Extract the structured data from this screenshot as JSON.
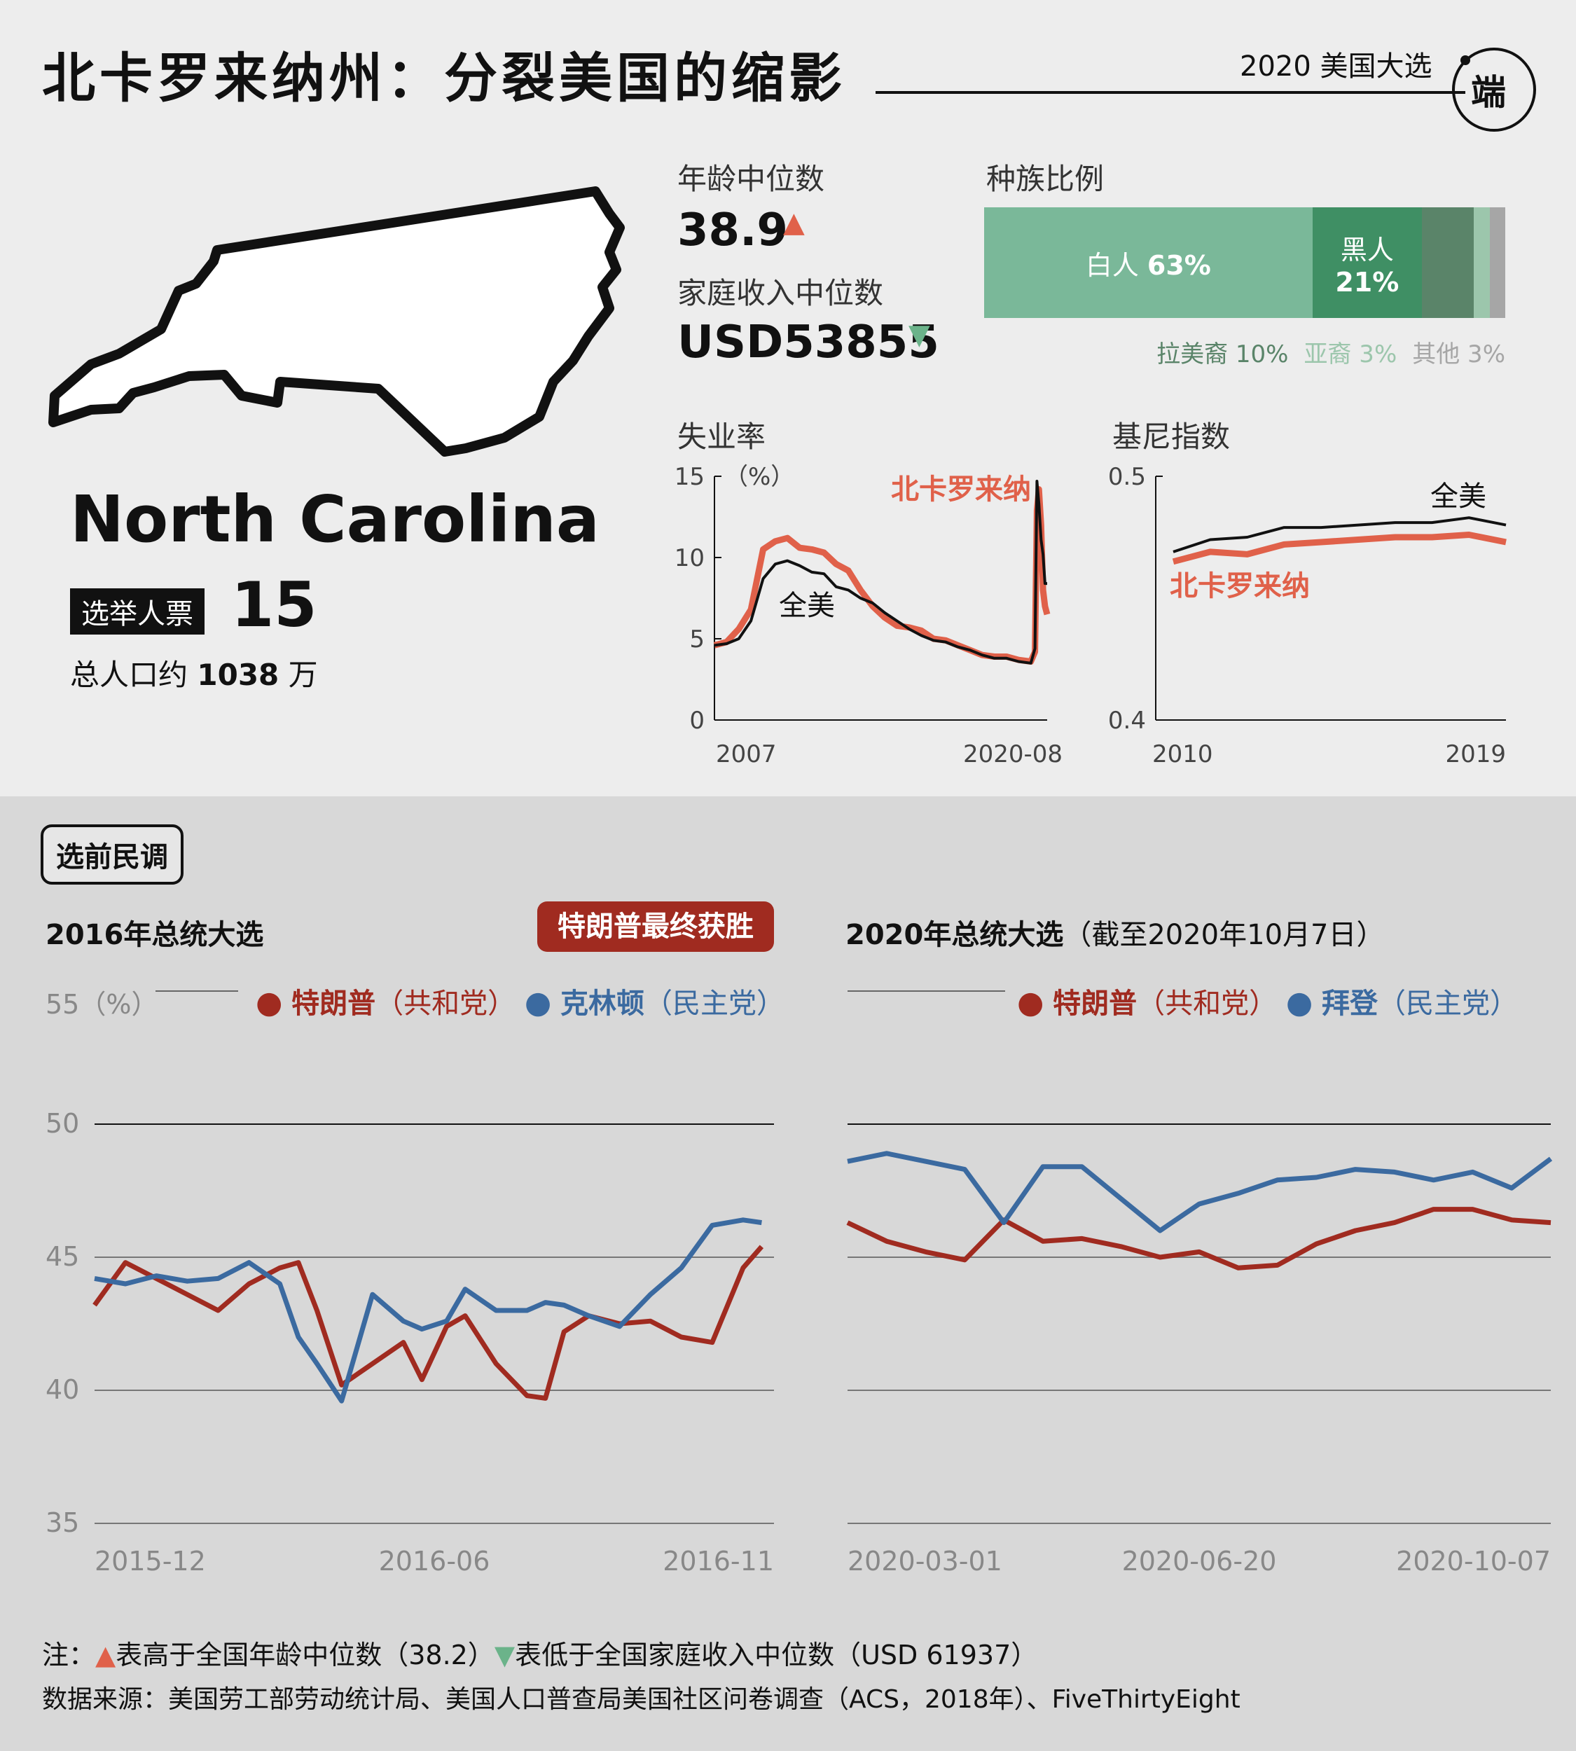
{
  "header": {
    "title": "北卡罗来纳州：分裂美国的缩影",
    "series": "2020 美国大选",
    "logo_text": "端"
  },
  "state": {
    "name": "North Carolina",
    "electoral_label": "选举人票",
    "electoral_votes": "15",
    "population_prefix": "总人口约",
    "population_value": "1038",
    "population_unit": "万"
  },
  "stats": {
    "median_age_label": "年龄中位数",
    "median_age_value": "38.9",
    "median_age_arrow": "▲",
    "median_income_label": "家庭收入中位数",
    "median_income_value": "USD53855",
    "median_income_arrow": "▼",
    "race_label": "种族比例"
  },
  "race": {
    "segments": [
      {
        "name": "白人",
        "value": 63,
        "value_label": "63%",
        "color": "#7ab899"
      },
      {
        "name": "黑人",
        "value": 21,
        "value_label": "21%",
        "color": "#3f8f64"
      },
      {
        "name": "拉美裔",
        "value": 10,
        "value_label": "10%",
        "color": "#5a8469"
      },
      {
        "name": "亚裔",
        "value": 3,
        "value_label": "3%",
        "color": "#9cc6ac"
      },
      {
        "name": "其他",
        "value": 3,
        "value_label": "3%",
        "color": "#a6a6a6"
      }
    ]
  },
  "polls_section": {
    "label": "选前民调"
  },
  "poll2016": {
    "title": "2016年总统大选",
    "winner_note": "特朗普最终获胜",
    "unit": "（%）",
    "legend": [
      {
        "name": "特朗普",
        "party": "（共和党）"
      },
      {
        "name": "克林顿",
        "party": "（民主党）"
      }
    ]
  },
  "poll2020": {
    "title": "2020年总统大选",
    "subtitle": "（截至2020年10月7日）",
    "legend": [
      {
        "name": "特朗普",
        "party": "（共和党）"
      },
      {
        "name": "拜登",
        "party": "（民主党）"
      }
    ]
  },
  "footer": {
    "note_prefix": "注：",
    "note_up_arrow": "▲",
    "note_up": "表高于全国年龄中位数（38.2）",
    "note_down_arrow": "▼",
    "note_down": "表低于全国家庭收入中位数（USD 61937）",
    "source": "数据来源：美国劳工部劳动统计局、美国人口普查局美国社区问卷调查（ACS，2018年）、FiveThirtyEight"
  },
  "colors": {
    "nc": "#e0614a",
    "us": "#111111",
    "trump": "#a02b20",
    "dem": "#3b6aa0",
    "up_arrow": "#e0614a",
    "down_arrow": "#6bb38a"
  },
  "chart_data": [
    {
      "id": "unemployment",
      "type": "line",
      "title": "失业率",
      "unit": "（%）",
      "ylim": [
        0,
        15
      ],
      "yticks": [
        0,
        5,
        10,
        15
      ],
      "xlim": [
        2007,
        2020.67
      ],
      "xtick_labels": [
        "2007",
        "2020-08"
      ],
      "series": [
        {
          "name": "北卡罗来纳",
          "x": [
            2007,
            2007.5,
            2008,
            2008.5,
            2009,
            2009.5,
            2010,
            2010.5,
            2011,
            2011.5,
            2012,
            2012.5,
            2013,
            2013.5,
            2014,
            2014.5,
            2015,
            2015.5,
            2016,
            2016.5,
            2017,
            2017.5,
            2018,
            2018.5,
            2019,
            2019.5,
            2020,
            2020.17,
            2020.25,
            2020.33,
            2020.42,
            2020.5,
            2020.58,
            2020.67
          ],
          "y": [
            4.6,
            4.8,
            5.6,
            6.8,
            10.5,
            11.0,
            11.2,
            10.6,
            10.5,
            10.3,
            9.6,
            9.2,
            8.0,
            7.0,
            6.3,
            5.8,
            5.7,
            5.5,
            5.0,
            4.9,
            4.6,
            4.3,
            4.0,
            3.9,
            3.9,
            3.7,
            3.6,
            4.2,
            12.9,
            14.2,
            12.0,
            8.0,
            7.0,
            6.5
          ]
        },
        {
          "name": "全美",
          "x": [
            2007,
            2007.5,
            2008,
            2008.5,
            2009,
            2009.5,
            2010,
            2010.5,
            2011,
            2011.5,
            2012,
            2012.5,
            2013,
            2013.5,
            2014,
            2014.5,
            2015,
            2015.5,
            2016,
            2016.5,
            2017,
            2017.5,
            2018,
            2018.5,
            2019,
            2019.5,
            2020,
            2020.17,
            2020.25,
            2020.33,
            2020.42,
            2020.5,
            2020.58,
            2020.67
          ],
          "y": [
            4.6,
            4.7,
            5.0,
            6.1,
            8.7,
            9.6,
            9.8,
            9.5,
            9.1,
            9.0,
            8.2,
            8.0,
            7.5,
            7.2,
            6.6,
            6.1,
            5.6,
            5.2,
            4.9,
            4.8,
            4.5,
            4.3,
            4.0,
            3.8,
            3.8,
            3.6,
            3.5,
            4.4,
            14.7,
            13.3,
            11.1,
            10.2,
            8.4,
            8.4
          ]
        }
      ]
    },
    {
      "id": "gini",
      "type": "line",
      "title": "基尼指数",
      "ylim": [
        0.4,
        0.5
      ],
      "yticks": [
        0.4,
        0.5
      ],
      "xlim": [
        2010,
        2019
      ],
      "xtick_labels": [
        "2010",
        "2019"
      ],
      "series": [
        {
          "name": "北卡罗来纳",
          "x": [
            2010,
            2011,
            2012,
            2013,
            2014,
            2015,
            2016,
            2017,
            2018,
            2019
          ],
          "y": [
            0.465,
            0.469,
            0.468,
            0.472,
            0.473,
            0.474,
            0.475,
            0.475,
            0.476,
            0.473
          ]
        },
        {
          "name": "全美",
          "x": [
            2010,
            2011,
            2012,
            2013,
            2014,
            2015,
            2016,
            2017,
            2018,
            2019
          ],
          "y": [
            0.469,
            0.474,
            0.475,
            0.479,
            0.479,
            0.48,
            0.481,
            0.481,
            0.483,
            0.48
          ]
        }
      ]
    },
    {
      "id": "poll2016",
      "type": "line",
      "ylim": [
        35,
        55
      ],
      "yticks": [
        35,
        40,
        45,
        50,
        55
      ],
      "xlim": [
        0,
        11
      ],
      "xtick_labels": [
        "2015-12",
        "2016-06",
        "2016-11"
      ],
      "series": [
        {
          "name": "特朗普",
          "x": [
            0,
            0.5,
            1,
            1.5,
            2,
            2.5,
            3,
            3.3,
            3.6,
            4,
            4.5,
            5,
            5.3,
            5.7,
            6,
            6.5,
            7,
            7.3,
            7.6,
            8,
            8.5,
            9,
            9.5,
            10,
            10.5,
            10.8
          ],
          "y": [
            43.2,
            44.8,
            44.2,
            43.6,
            43.0,
            44.0,
            44.6,
            44.8,
            43.0,
            40.2,
            41.0,
            41.8,
            40.4,
            42.4,
            42.8,
            41.0,
            39.8,
            39.7,
            42.2,
            42.8,
            42.5,
            42.6,
            42.0,
            41.8,
            44.6,
            45.4
          ]
        },
        {
          "name": "克林顿",
          "x": [
            0,
            0.5,
            1,
            1.5,
            2,
            2.5,
            3,
            3.3,
            3.6,
            4,
            4.5,
            5,
            5.3,
            5.7,
            6,
            6.5,
            7,
            7.3,
            7.6,
            8,
            8.5,
            9,
            9.5,
            10,
            10.5,
            10.8
          ],
          "y": [
            44.2,
            44.0,
            44.3,
            44.1,
            44.2,
            44.8,
            44.0,
            42.0,
            41.0,
            39.6,
            43.6,
            42.6,
            42.3,
            42.6,
            43.8,
            43.0,
            43.0,
            43.3,
            43.2,
            42.8,
            42.4,
            43.6,
            44.6,
            46.2,
            46.4,
            46.3
          ]
        }
      ]
    },
    {
      "id": "poll2020",
      "type": "line",
      "ylim": [
        35,
        55
      ],
      "yticks": [
        35,
        40,
        45,
        50,
        55
      ],
      "xlim": [
        0,
        7.2
      ],
      "xtick_labels": [
        "2020-03-01",
        "2020-06-20",
        "2020-10-07"
      ],
      "series": [
        {
          "name": "特朗普",
          "x": [
            0,
            0.4,
            0.8,
            1.2,
            1.6,
            2.0,
            2.4,
            2.8,
            3.2,
            3.6,
            4.0,
            4.4,
            4.8,
            5.2,
            5.6,
            6.0,
            6.4,
            6.8,
            7.2
          ],
          "y": [
            46.3,
            45.6,
            45.2,
            44.9,
            46.4,
            45.6,
            45.7,
            45.4,
            45.0,
            45.2,
            44.6,
            44.7,
            45.5,
            46.0,
            46.3,
            46.8,
            46.8,
            46.4,
            46.3
          ]
        },
        {
          "name": "拜登",
          "x": [
            0,
            0.4,
            0.8,
            1.2,
            1.6,
            2.0,
            2.4,
            2.8,
            3.2,
            3.6,
            4.0,
            4.4,
            4.8,
            5.2,
            5.6,
            6.0,
            6.4,
            6.8,
            7.2
          ],
          "y": [
            48.6,
            48.9,
            48.6,
            48.3,
            46.3,
            48.4,
            48.4,
            47.2,
            46.0,
            47.0,
            47.4,
            47.9,
            48.0,
            48.3,
            48.2,
            47.9,
            48.2,
            47.6,
            48.7
          ]
        }
      ]
    }
  ]
}
